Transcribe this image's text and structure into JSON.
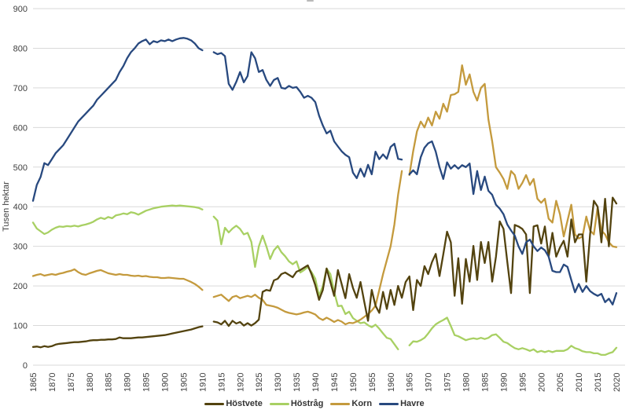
{
  "chart": {
    "y_ticks": [
      "0",
      "100",
      "200",
      "300",
      "400",
      "500",
      "600",
      "700",
      "800",
      "900"
    ],
    "x_ticks": [
      "1865",
      "1870",
      "1875",
      "1880",
      "1885",
      "1890",
      "1895",
      "1900",
      "1905",
      "1910",
      "1915",
      "1920",
      "1925",
      "1930",
      "1935",
      "1940",
      "1945",
      "1950",
      "1955",
      "1960",
      "1965",
      "1970",
      "1975",
      "1980",
      "1985",
      "1990",
      "1995",
      "2000",
      "2005",
      "2010",
      "2015",
      "2020"
    ],
    "grid_color": "#d9d9d9",
    "tick_label_color": "#3f3f3f",
    "legend": [
      {
        "label": "Höstvete",
        "color": "#53430f"
      },
      {
        "label": "Höstråg",
        "color": "#a8d063"
      },
      {
        "label": "Korn",
        "color": "#c49a3d"
      },
      {
        "label": "Havre",
        "color": "#28497f"
      }
    ]
  },
  "chart_data": {
    "type": "line",
    "title": "",
    "xlabel": "",
    "ylabel": "Tusen hektar",
    "ylim": [
      0,
      900
    ],
    "x_start": 1865,
    "x_end": 2020,
    "grid": true,
    "legend_position": "bottom",
    "note_gaps": "null = data break (series breaks around 1911-1912 and 1963-1964)",
    "series": [
      {
        "name": "Höstråg",
        "color": "#a8d063",
        "values": [
          360,
          345,
          338,
          331,
          335,
          342,
          347,
          350,
          349,
          351,
          350,
          352,
          350,
          353,
          355,
          358,
          362,
          368,
          372,
          369,
          374,
          371,
          378,
          380,
          383,
          381,
          386,
          384,
          380,
          385,
          390,
          393,
          396,
          398,
          400,
          401,
          402,
          403,
          402,
          403,
          402,
          401,
          400,
          399,
          397,
          393,
          null,
          null,
          375,
          365,
          305,
          347,
          335,
          345,
          352,
          344,
          330,
          334,
          311,
          248,
          300,
          327,
          300,
          268,
          290,
          301,
          285,
          275,
          262,
          255,
          262,
          234,
          240,
          248,
          235,
          218,
          175,
          200,
          244,
          230,
          185,
          149,
          150,
          129,
          135,
          119,
          112,
          106,
          108,
          101,
          96,
          102,
          92,
          80,
          69,
          66,
          53,
          40,
          null,
          null,
          50,
          60,
          59,
          63,
          69,
          80,
          93,
          103,
          109,
          114,
          120,
          99,
          76,
          73,
          68,
          63,
          66,
          68,
          66,
          69,
          66,
          69,
          76,
          78,
          69,
          59,
          56,
          49,
          43,
          40,
          43,
          40,
          36,
          40,
          33,
          36,
          33,
          36,
          33,
          36,
          36,
          36,
          40,
          49,
          43,
          40,
          35,
          33,
          33,
          30,
          30,
          26,
          26,
          30,
          33,
          44
        ]
      },
      {
        "name": "Korn",
        "color": "#c49a3d",
        "values": [
          225,
          228,
          230,
          226,
          228,
          230,
          228,
          231,
          233,
          236,
          238,
          242,
          235,
          230,
          228,
          232,
          235,
          238,
          240,
          236,
          232,
          230,
          228,
          230,
          228,
          228,
          226,
          225,
          226,
          224,
          225,
          223,
          222,
          222,
          220,
          220,
          221,
          220,
          219,
          218,
          218,
          214,
          210,
          205,
          198,
          190,
          null,
          null,
          172,
          175,
          178,
          170,
          162,
          172,
          175,
          169,
          172,
          175,
          172,
          178,
          170,
          165,
          152,
          150,
          148,
          145,
          140,
          135,
          132,
          130,
          128,
          130,
          133,
          135,
          132,
          128,
          119,
          114,
          120,
          115,
          109,
          114,
          110,
          103,
          107,
          106,
          110,
          115,
          122,
          129,
          138,
          150,
          190,
          230,
          265,
          300,
          355,
          430,
          490,
          null,
          480,
          540,
          590,
          615,
          600,
          625,
          605,
          640,
          622,
          660,
          640,
          682,
          684,
          690,
          757,
          708,
          734,
          690,
          668,
          700,
          710,
          620,
          565,
          500,
          486,
          470,
          445,
          490,
          480,
          445,
          460,
          480,
          455,
          470,
          420,
          410,
          420,
          370,
          360,
          415,
          381,
          325,
          365,
          405,
          330,
          320,
          325,
          375,
          340,
          330,
          398,
          340,
          330,
          310,
          300,
          298
        ]
      },
      {
        "name": "Höstvete",
        "color": "#53430f",
        "values": [
          46,
          47,
          45,
          48,
          46,
          48,
          52,
          54,
          55,
          56,
          57,
          58,
          58,
          59,
          60,
          62,
          63,
          63,
          64,
          64,
          65,
          65,
          66,
          70,
          68,
          68,
          68,
          69,
          70,
          70,
          71,
          72,
          73,
          74,
          75,
          76,
          78,
          80,
          82,
          84,
          86,
          88,
          90,
          93,
          96,
          98,
          null,
          null,
          110,
          108,
          103,
          112,
          99,
          112,
          105,
          109,
          100,
          106,
          100,
          106,
          115,
          185,
          190,
          188,
          214,
          218,
          230,
          234,
          228,
          222,
          236,
          240,
          246,
          252,
          230,
          202,
          165,
          190,
          244,
          210,
          175,
          240,
          205,
          169,
          230,
          195,
          170,
          210,
          160,
          112,
          190,
          150,
          132,
          185,
          142,
          190,
          152,
          200,
          170,
          210,
          224,
          139,
          215,
          200,
          250,
          230,
          260,
          281,
          225,
          280,
          337,
          310,
          175,
          270,
          155,
          268,
          211,
          301,
          215,
          311,
          258,
          311,
          211,
          274,
          363,
          344,
          261,
          182,
          354,
          350,
          344,
          330,
          182,
          350,
          353,
          307,
          350,
          274,
          334,
          274,
          297,
          314,
          274,
          368,
          310,
          330,
          330,
          211,
          330,
          415,
          400,
          310,
          420,
          300,
          423,
          408
        ]
      },
      {
        "name": "Havre",
        "color": "#28497f",
        "values": [
          415,
          455,
          475,
          510,
          505,
          520,
          535,
          545,
          555,
          570,
          585,
          600,
          615,
          625,
          635,
          645,
          655,
          670,
          680,
          690,
          700,
          710,
          720,
          740,
          755,
          775,
          790,
          800,
          812,
          818,
          822,
          810,
          818,
          815,
          820,
          818,
          822,
          818,
          822,
          825,
          826,
          824,
          820,
          812,
          800,
          795,
          null,
          null,
          790,
          785,
          788,
          780,
          710,
          695,
          715,
          740,
          714,
          730,
          790,
          775,
          740,
          745,
          720,
          705,
          720,
          725,
          700,
          698,
          705,
          700,
          702,
          690,
          675,
          680,
          675,
          664,
          630,
          605,
          585,
          592,
          565,
          552,
          540,
          531,
          525,
          486,
          472,
          496,
          476,
          506,
          482,
          539,
          520,
          532,
          521,
          551,
          559,
          521,
          519,
          null,
          482,
          492,
          482,
          525,
          549,
          560,
          565,
          539,
          500,
          470,
          512,
          496,
          505,
          496,
          505,
          500,
          509,
          432,
          490,
          442,
          476,
          440,
          430,
          405,
          395,
          381,
          355,
          340,
          327,
          300,
          281,
          310,
          317,
          300,
          288,
          297,
          290,
          274,
          238,
          235,
          235,
          254,
          248,
          215,
          184,
          205,
          185,
          200,
          187,
          180,
          175,
          180,
          159,
          168,
          153,
          182
        ]
      }
    ]
  }
}
